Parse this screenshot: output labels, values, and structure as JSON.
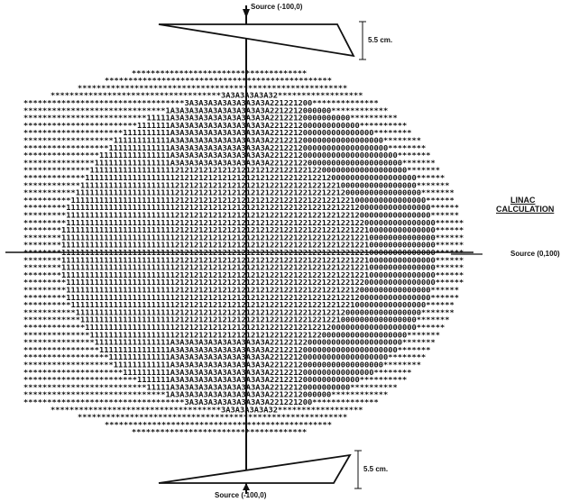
{
  "diagram": {
    "top_source_label": "Source (-100,0)",
    "bottom_source_label": "Source (-100,0)",
    "right_source_label": "Source (0,100)",
    "wedge_thickness_top": "5.5 cm.",
    "wedge_thickness_bottom": "5.5 cm.",
    "calc_label_line1": "LINAC",
    "calc_label_line2": "CALCULATION",
    "isodose_symbols": [
      "*",
      "1",
      "2",
      "3",
      "A",
      "0"
    ],
    "colors": {
      "ink": "#111111",
      "background": "#ffffff"
    }
  }
}
